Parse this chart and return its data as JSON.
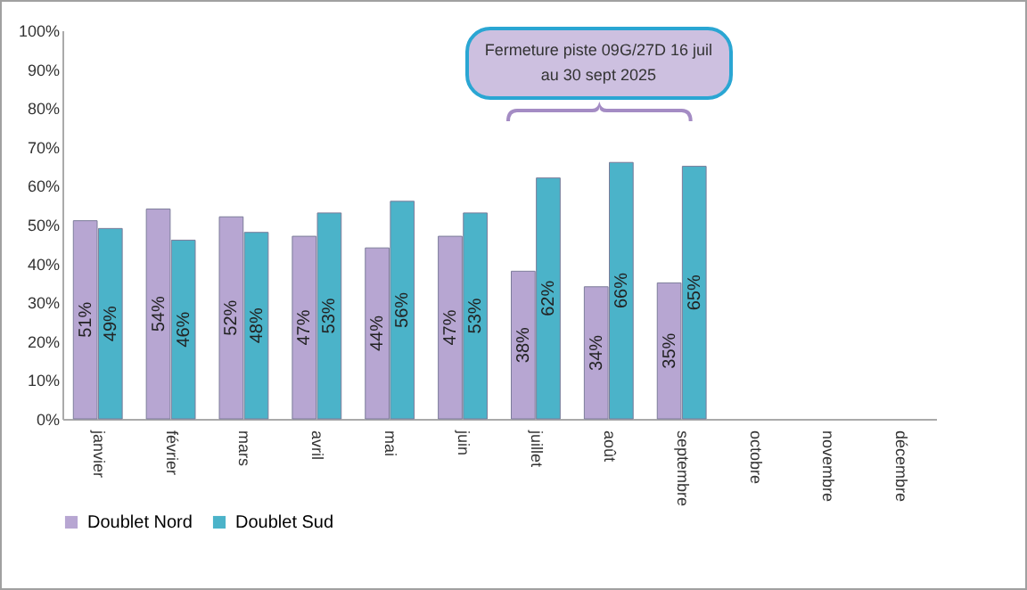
{
  "chart_data": {
    "type": "bar",
    "categories": [
      "janvier",
      "février",
      "mars",
      "avril",
      "mai",
      "juin",
      "juillet",
      "août",
      "septembre",
      "octobre",
      "novembre",
      "décembre"
    ],
    "series": [
      {
        "name": "Doublet Nord",
        "color": "#b7a6d2",
        "values": [
          51,
          54,
          52,
          47,
          44,
          47,
          38,
          34,
          35,
          null,
          null,
          null
        ],
        "value_labels": [
          "51%",
          "54%",
          "52%",
          "47%",
          "44%",
          "47%",
          "38%",
          "34%",
          "35%",
          null,
          null,
          null
        ]
      },
      {
        "name": "Doublet Sud",
        "color": "#4bb3c9",
        "values": [
          49,
          46,
          48,
          53,
          56,
          53,
          62,
          66,
          65,
          null,
          null,
          null
        ],
        "value_labels": [
          "49%",
          "46%",
          "48%",
          "53%",
          "56%",
          "53%",
          "62%",
          "66%",
          "65%",
          null,
          null,
          null
        ]
      }
    ],
    "ylim": [
      0,
      100
    ],
    "yticks": [
      {
        "value": 0,
        "label": "0%"
      },
      {
        "value": 10,
        "label": "10%"
      },
      {
        "value": 20,
        "label": "20%"
      },
      {
        "value": 30,
        "label": "30%"
      },
      {
        "value": 40,
        "label": "40%"
      },
      {
        "value": 50,
        "label": "50%"
      },
      {
        "value": 60,
        "label": "60%"
      },
      {
        "value": 70,
        "label": "70%"
      },
      {
        "value": 80,
        "label": "80%"
      },
      {
        "value": 90,
        "label": "90%"
      },
      {
        "value": 100,
        "label": "100%"
      }
    ],
    "annotations": [
      "Fermeture piste 09G/27D 16 juil au 30 sept 2025"
    ],
    "legend": "bottom",
    "grid": false
  }
}
